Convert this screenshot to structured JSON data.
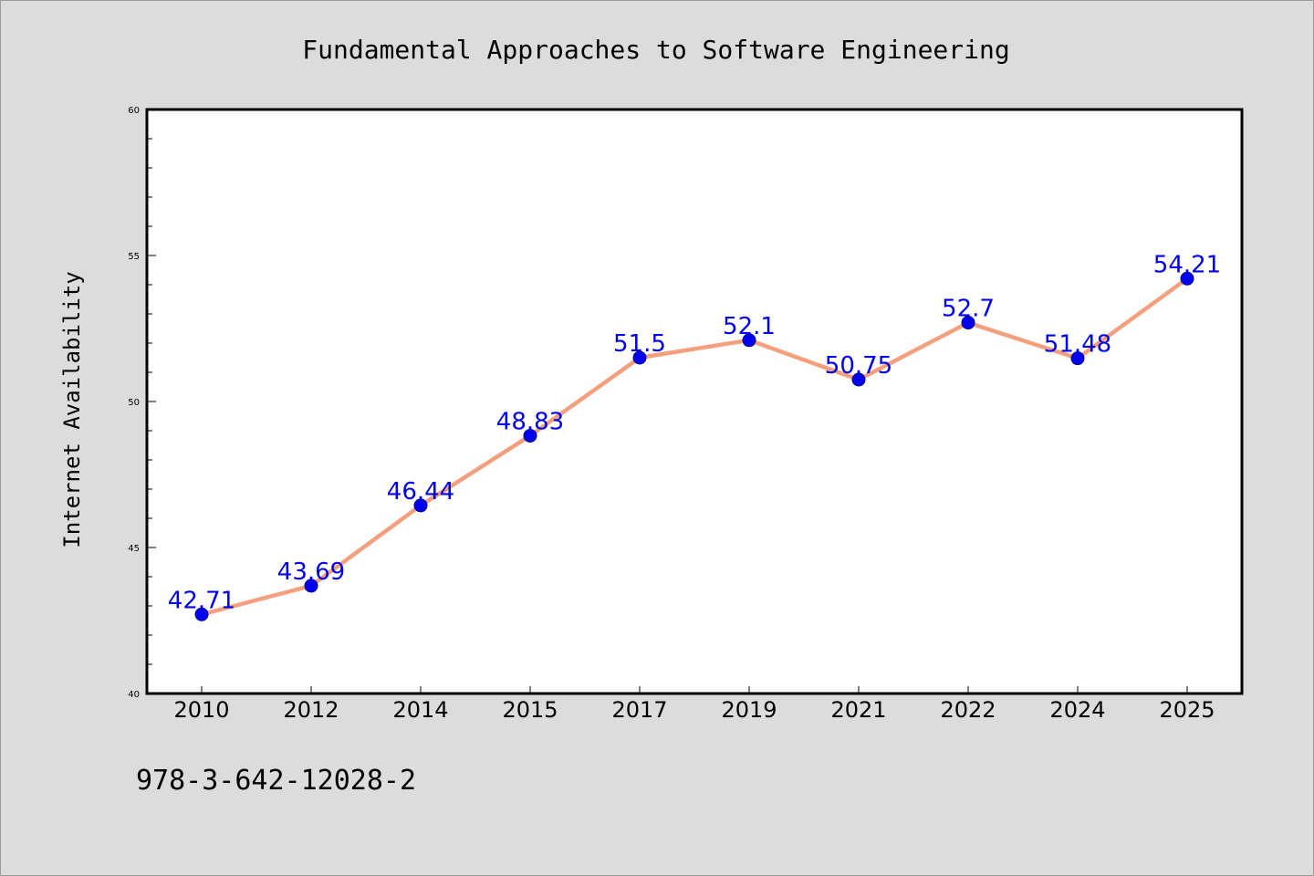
{
  "chart_data": {
    "type": "line",
    "title": "Fundamental Approaches to Software Engineering",
    "xlabel": "",
    "ylabel": "Internet Availability",
    "categories": [
      "2010",
      "2012",
      "2014",
      "2015",
      "2017",
      "2019",
      "2021",
      "2022",
      "2024",
      "2025"
    ],
    "series": [
      {
        "values": [
          42.71,
          43.69,
          46.44,
          48.83,
          51.5,
          52.1,
          50.75,
          52.7,
          51.48,
          54.21
        ],
        "labels": [
          "42.71",
          "43.69",
          "46.44",
          "48.83",
          "51.5",
          "52.1",
          "50.75",
          "52.7",
          "51.48",
          "54.21"
        ],
        "line_color": "#f4a07e",
        "marker_color": "#0000ee",
        "label_color": "#0000ee"
      }
    ],
    "ylim": [
      40,
      60
    ],
    "yticks": [
      "40",
      "45",
      "50",
      "55",
      "60"
    ],
    "grid": false,
    "legend": "none"
  },
  "footer_text": "978-3-642-12028-2"
}
